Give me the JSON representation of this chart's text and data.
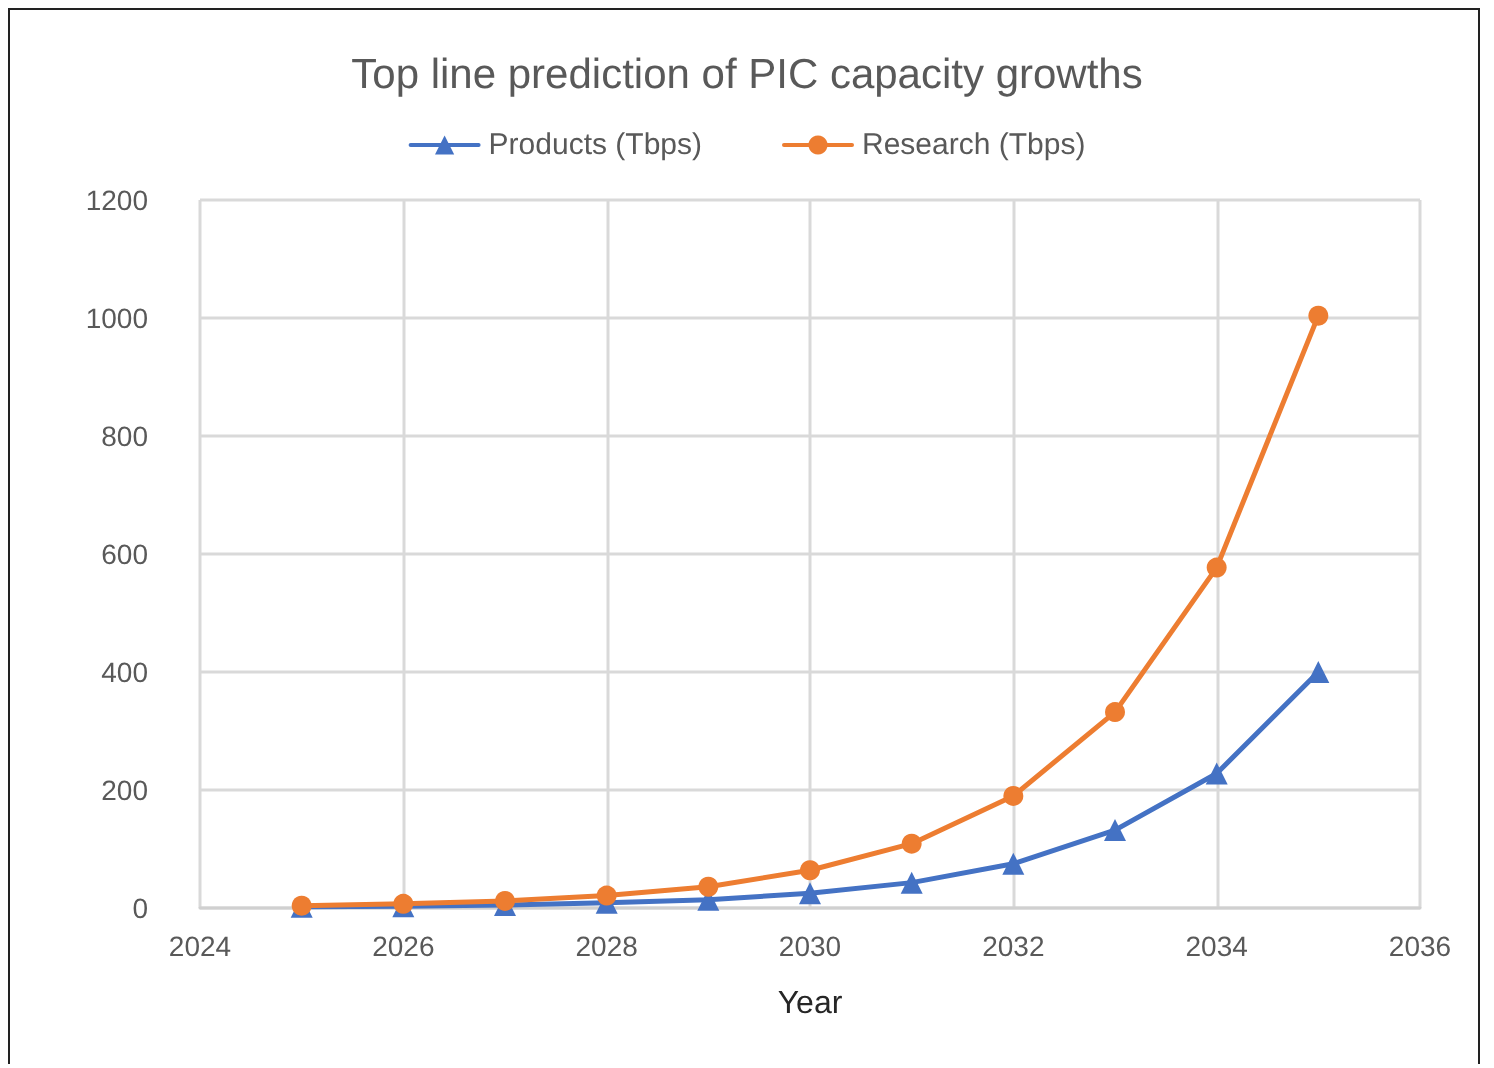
{
  "chart_data": {
    "type": "line",
    "title": "Top line prediction of PIC capacity growths",
    "xlabel": "Year",
    "x": [
      2025,
      2026,
      2027,
      2028,
      2029,
      2030,
      2031,
      2032,
      2033,
      2034,
      2035
    ],
    "series": [
      {
        "name": "Products (Tbps)",
        "color": "#4472c4",
        "marker": "triangle",
        "values": [
          2,
          3,
          5,
          9,
          14,
          25,
          43,
          75,
          132,
          228,
          400
        ]
      },
      {
        "name": "Research (Tbps)",
        "color": "#ed7d31",
        "marker": "circle",
        "values": [
          4,
          7,
          12,
          21,
          36,
          64,
          109,
          190,
          332,
          577,
          1004
        ]
      }
    ],
    "xlim": [
      2024,
      2036
    ],
    "xticks": [
      2024,
      2026,
      2028,
      2030,
      2032,
      2034,
      2036
    ],
    "ylim": [
      0,
      1200
    ],
    "yticks": [
      0,
      200,
      400,
      600,
      800,
      1000,
      1200
    ],
    "grid": true,
    "legend": "top",
    "line_style": "solid"
  }
}
